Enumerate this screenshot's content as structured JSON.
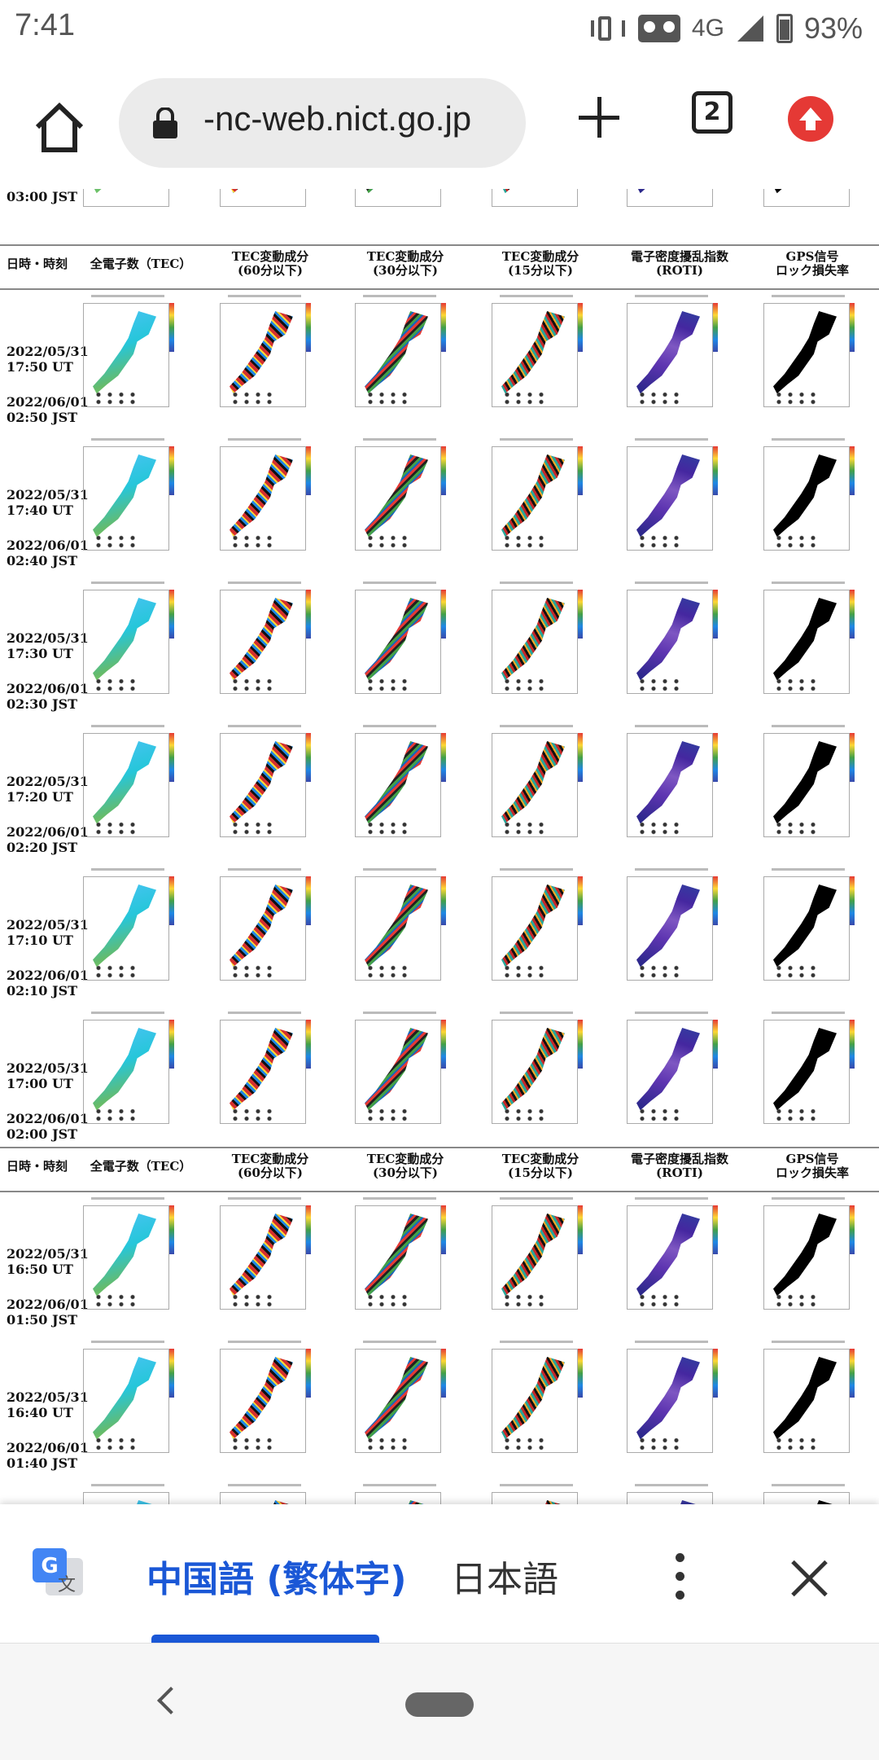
{
  "status_bar": {
    "time": "7:41",
    "network": "4G",
    "battery": "93%"
  },
  "browser": {
    "url": "-nc-web.nict.go.jp",
    "tab_count": "2"
  },
  "table": {
    "header": {
      "datetime": "日時・時刻",
      "col1": "全電子数（TEC）",
      "col2a": "TEC変動成分",
      "col2b": "(60分以下)",
      "col3a": "TEC変動成分",
      "col3b": "(30分以下)",
      "col4a": "TEC変動成分",
      "col4b": "(15分以下)",
      "col5a": "電子密度擾乱指数",
      "col5b": "(ROTI)",
      "col6a": "GPS信号",
      "col6b": "ロック損失率"
    },
    "partial_top_label": "03:00 JST",
    "rows": [
      {
        "ut_date": "2022/05/31",
        "ut_time": "17:50 UT",
        "jst_date": "2022/06/01",
        "jst_time": "02:50 JST"
      },
      {
        "ut_date": "2022/05/31",
        "ut_time": "17:40 UT",
        "jst_date": "2022/06/01",
        "jst_time": "02:40 JST"
      },
      {
        "ut_date": "2022/05/31",
        "ut_time": "17:30 UT",
        "jst_date": "2022/06/01",
        "jst_time": "02:30 JST"
      },
      {
        "ut_date": "2022/05/31",
        "ut_time": "17:20 UT",
        "jst_date": "2022/06/01",
        "jst_time": "02:20 JST"
      },
      {
        "ut_date": "2022/05/31",
        "ut_time": "17:10 UT",
        "jst_date": "2022/06/01",
        "jst_time": "02:10 JST"
      },
      {
        "ut_date": "2022/05/31",
        "ut_time": "17:00 UT",
        "jst_date": "2022/06/01",
        "jst_time": "02:00 JST"
      },
      {
        "ut_date": "2022/05/31",
        "ut_time": "16:50 UT",
        "jst_date": "2022/06/01",
        "jst_time": "01:50 JST"
      },
      {
        "ut_date": "2022/05/31",
        "ut_time": "16:40 UT",
        "jst_date": "2022/06/01",
        "jst_time": "01:40 JST"
      }
    ]
  },
  "translate_bar": {
    "source_lang": "中国語 (繁体字)",
    "target_lang": "日本語"
  }
}
